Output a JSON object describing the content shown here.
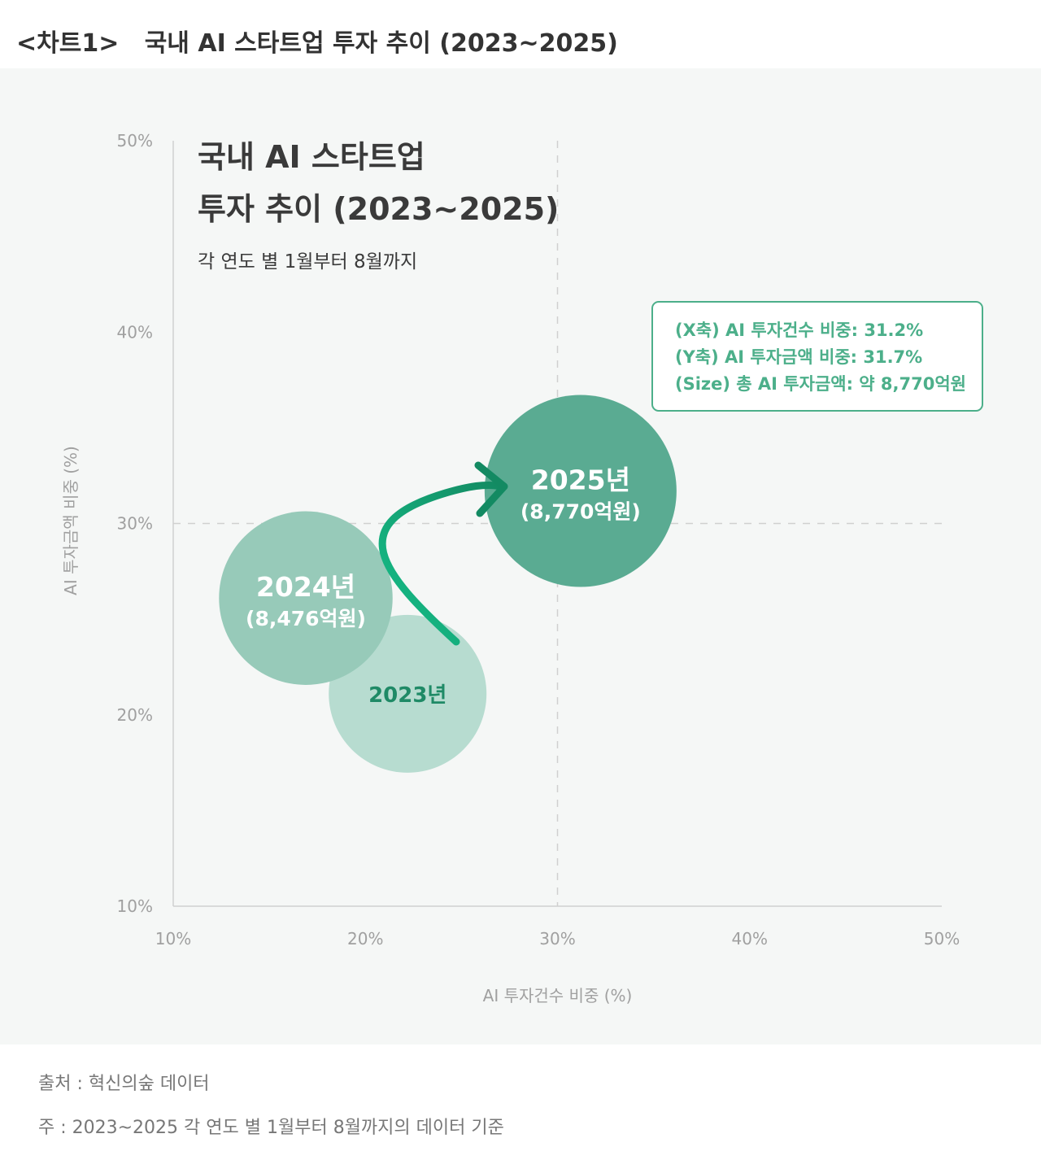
{
  "header": {
    "tag": "<차트1>",
    "title": "국내 AI 스타트업 투자 추이 (2023~2025)"
  },
  "chart_data": {
    "type": "scatter",
    "title_line1": "국내 AI 스타트업",
    "title_line2": "투자 추이 (2023~2025)",
    "subtitle": "각 연도 별 1월부터 8월까지",
    "xlabel": "AI 투자건수 비중 (%)",
    "ylabel": "AI 투자금액 비중 (%)",
    "xlim": [
      10,
      50
    ],
    "ylim": [
      10,
      50
    ],
    "x_ticks": [
      "10%",
      "20%",
      "30%",
      "40%",
      "50%"
    ],
    "y_ticks": [
      "10%",
      "20%",
      "30%",
      "40%",
      "50%"
    ],
    "reference_lines": {
      "x": 30,
      "y": 30
    },
    "points": [
      {
        "label": "2023년",
        "amount_label": "",
        "x": 22.2,
        "y": 21.1,
        "size": 7000,
        "color": "#b7dcd0",
        "text_color": "#1f8a66"
      },
      {
        "label": "2024년",
        "amount_label": "(8,476억원)",
        "x": 16.9,
        "y": 26.1,
        "size": 8476,
        "color": "#97cab9",
        "text_color": "#ffffff"
      },
      {
        "label": "2025년",
        "amount_label": "(8,770억원)",
        "x": 31.2,
        "y": 31.7,
        "size": 8770,
        "color": "#5aab92",
        "text_color": "#ffffff"
      }
    ],
    "callout": [
      "(X축) AI 투자건수 비중: 31.2%",
      "(Y축) AI 투자금액 비중: 31.7%",
      "(Size) 총 AI 투자금액: 약 8,770억원"
    ],
    "colors": {
      "accent": "#4caf8a",
      "arrow": "#12a274",
      "axis_text": "#a0a0a0",
      "grid": "#d0d0d0"
    }
  },
  "footer": {
    "source": "출처 : 혁신의숲 데이터",
    "note": "주 : 2023~2025 각 연도 별 1월부터 8월까지의 데이터 기준"
  }
}
